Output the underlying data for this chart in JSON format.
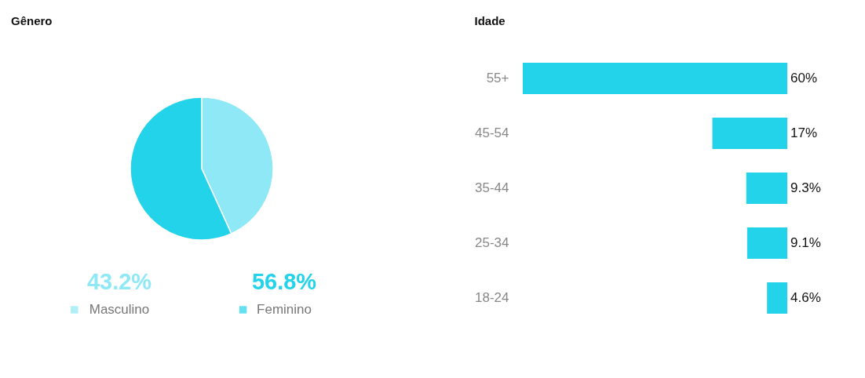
{
  "chart_data": [
    {
      "type": "pie",
      "title": "Gênero",
      "categories": [
        "Masculino",
        "Feminino"
      ],
      "values": [
        43.2,
        56.8
      ],
      "colors": [
        "#8ee8f5",
        "#22d3ea"
      ],
      "value_labels": [
        "43.2%",
        "56.8%"
      ],
      "legend": "bottom"
    },
    {
      "type": "bar",
      "title": "Idade",
      "orientation": "horizontal",
      "categories": [
        "55+",
        "45-54",
        "35-44",
        "25-34",
        "18-24"
      ],
      "values": [
        60,
        17,
        9.3,
        9.1,
        4.6
      ],
      "color": "#22d3ea",
      "value_labels": [
        "60%",
        "17%",
        "9.3%",
        "9.1%",
        "4.6%"
      ],
      "xlim": [
        60,
        0
      ],
      "tick_labels": "y"
    }
  ]
}
